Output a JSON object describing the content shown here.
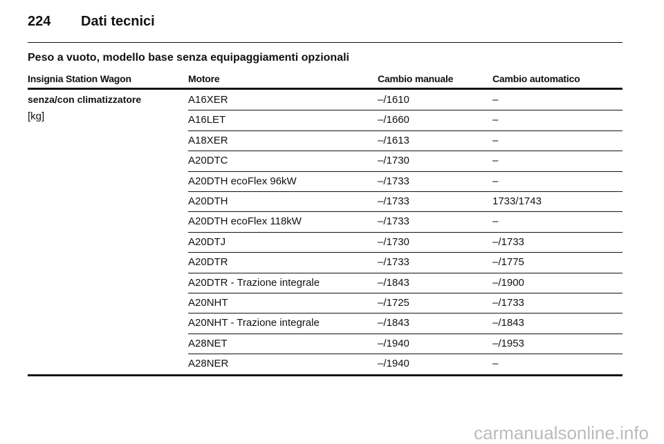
{
  "header": {
    "page_number": "224",
    "title": "Dati tecnici"
  },
  "section_title": "Peso a vuoto, modello base senza equipaggiamenti opzionali",
  "table": {
    "columns": [
      "Insignia Station Wagon",
      "Motore",
      "Cambio manuale",
      "Cambio automatico"
    ],
    "group": {
      "label": "senza/con climatizzatore",
      "unit": "[kg]"
    },
    "rows": [
      [
        "A16XER",
        "–/1610",
        "–"
      ],
      [
        "A16LET",
        "–/1660",
        "–"
      ],
      [
        "A18XER",
        "–/1613",
        "–"
      ],
      [
        "A20DTC",
        "–/1730",
        "–"
      ],
      [
        "A20DTH ecoFlex 96kW",
        "–/1733",
        "–"
      ],
      [
        "A20DTH",
        "–/1733",
        "1733/1743"
      ],
      [
        "A20DTH ecoFlex 118kW",
        "–/1733",
        "–"
      ],
      [
        "A20DTJ",
        "–/1730",
        "–/1733"
      ],
      [
        "A20DTR",
        "–/1733",
        "–/1775"
      ],
      [
        "A20DTR - Trazione integrale",
        "–/1843",
        "–/1900"
      ],
      [
        "A20NHT",
        "–/1725",
        "–/1733"
      ],
      [
        "A20NHT - Trazione integrale",
        "–/1843",
        "–/1843"
      ],
      [
        "A28NET",
        "–/1940",
        "–/1953"
      ],
      [
        "A28NER",
        "–/1940",
        "–"
      ]
    ]
  },
  "watermark": "carmanualsonline.info"
}
